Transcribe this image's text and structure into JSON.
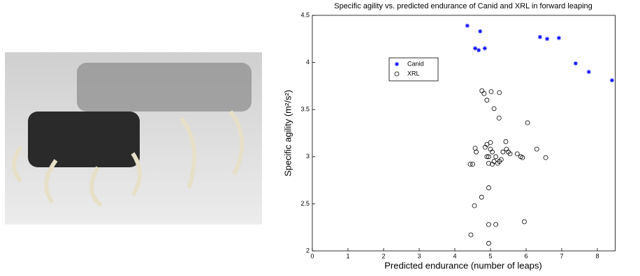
{
  "chart_data": {
    "type": "scatter",
    "title": "Specific agility vs. predicted endurance of Canid and XRL in forward leaping",
    "x_label": "Predicted endurance (number of leaps)",
    "y_label": "Specific agility (m²/s²)",
    "xlim": [
      0,
      8.5
    ],
    "xticks": [
      0,
      1,
      2,
      3,
      4,
      5,
      6,
      7,
      8
    ],
    "ylim": [
      2,
      4.5
    ],
    "yticks": [
      2,
      2.5,
      3,
      3.5,
      4,
      4.5
    ],
    "legend": "upper left",
    "series": [
      {
        "name": "Canid",
        "color": "#0000ff",
        "marker": "asterisk",
        "x": [
          4.35,
          4.71,
          4.57,
          4.67,
          4.84,
          6.39,
          6.59,
          6.92,
          7.39,
          7.76,
          8.41
        ],
        "values": [
          4.39,
          4.33,
          4.15,
          4.13,
          4.15,
          4.27,
          4.25,
          4.26,
          3.99,
          3.9,
          3.81
        ]
      },
      {
        "name": "XRL",
        "color": "#000000",
        "marker": "circle",
        "x": [
          4.76,
          4.82,
          5.02,
          5.25,
          4.9,
          5.1,
          5.24,
          6.04,
          5.43,
          4.57,
          4.43,
          4.6,
          4.85,
          4.9,
          4.95,
          5.0,
          5.05,
          5.1,
          5.15,
          5.2,
          5.25,
          5.3,
          4.95,
          5.05,
          5.35,
          5.45,
          5.55,
          5.75,
          5.85,
          5.9,
          6.3,
          6.55,
          5.5,
          4.9,
          4.5,
          4.75,
          4.55,
          4.95,
          4.95,
          5.15,
          5.95,
          4.45,
          4.95,
          5.0
        ],
        "values": [
          3.7,
          3.67,
          3.69,
          3.68,
          3.6,
          3.51,
          3.41,
          3.36,
          3.16,
          3.09,
          2.92,
          3.05,
          3.1,
          3.13,
          3.0,
          3.08,
          3.05,
          2.95,
          3.0,
          2.93,
          2.95,
          2.97,
          2.93,
          2.92,
          3.05,
          3.08,
          3.03,
          3.03,
          3.0,
          2.99,
          3.08,
          2.99,
          3.05,
          3.0,
          2.92,
          2.57,
          2.48,
          2.67,
          2.28,
          2.28,
          2.31,
          2.17,
          2.08,
          3.15
        ]
      }
    ]
  }
}
